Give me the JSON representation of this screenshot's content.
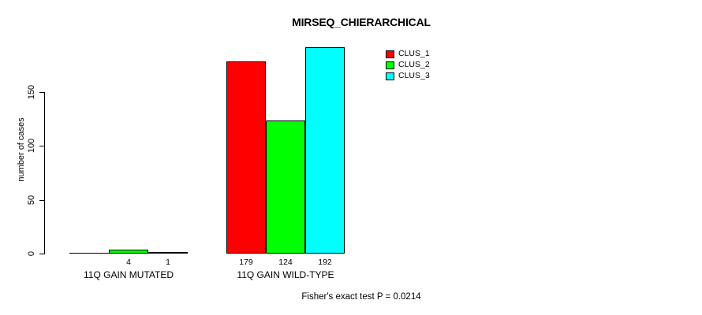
{
  "title": "MIRSEQ_CHIERARCHICAL",
  "y_axis": {
    "label": "number of cases"
  },
  "legend": {
    "items": [
      {
        "label": "CLUS_1",
        "color": "#ff0000"
      },
      {
        "label": "CLUS_2",
        "color": "#00ff00"
      },
      {
        "label": "CLUS_3",
        "color": "#00ffff"
      }
    ]
  },
  "footer": "Fisher's exact test P = 0.0214",
  "chart_data": {
    "type": "bar",
    "title": "MIRSEQ_CHIERARCHICAL",
    "categories": [
      "11Q GAIN MUTATED",
      "11Q GAIN WILD-TYPE"
    ],
    "series": [
      {
        "name": "CLUS_1",
        "color": "#ff0000",
        "values": [
          0,
          179
        ]
      },
      {
        "name": "CLUS_2",
        "color": "#00ff00",
        "values": [
          4,
          124
        ]
      },
      {
        "name": "CLUS_3",
        "color": "#00ffff",
        "values": [
          1,
          192
        ]
      }
    ],
    "bar_labels": [
      [
        "",
        "4",
        "1"
      ],
      [
        "179",
        "124",
        "192"
      ]
    ],
    "xlabel": "",
    "ylabel": "number of cases",
    "yticks": [
      0,
      50,
      100,
      150
    ],
    "ylim": [
      0,
      192
    ],
    "grid": false,
    "legend_position": "top-right",
    "annotation": "Fisher's exact test P = 0.0214"
  }
}
